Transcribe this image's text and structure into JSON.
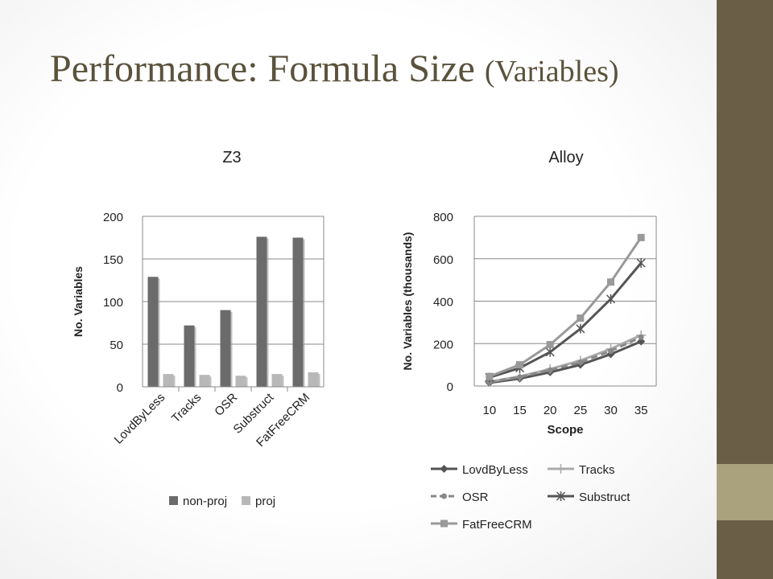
{
  "slide": {
    "title_main": "Performance: Formula Size",
    "title_sub": "(Variables)",
    "colors": {
      "band_dark": "#6b5e46",
      "band_light": "#a9a27d",
      "title": "#5a523b"
    }
  },
  "chart_data": [
    {
      "type": "bar",
      "title": "Z3",
      "ylabel": "No. Variables",
      "xlabel": "",
      "categories": [
        "LovdByLess",
        "Tracks",
        "OSR",
        "Substruct",
        "FatFreeCRM"
      ],
      "ylim": [
        0,
        200
      ],
      "yticks": [
        0,
        50,
        100,
        150,
        200
      ],
      "grid": true,
      "legend": "bottom",
      "series": [
        {
          "name": "non-proj",
          "values": [
            129,
            72,
            90,
            176,
            175
          ],
          "color": "#6b6b6b"
        },
        {
          "name": "proj",
          "values": [
            15,
            14,
            13,
            15,
            17
          ],
          "color": "#b8b8b8"
        }
      ]
    },
    {
      "type": "line",
      "title": "Alloy",
      "ylabel": "No. Variables (thousands)",
      "xlabel": "Scope",
      "x": [
        10,
        15,
        20,
        25,
        30,
        35
      ],
      "xticks": [
        10,
        15,
        20,
        25,
        30,
        35
      ],
      "ylim": [
        0,
        800
      ],
      "yticks": [
        0,
        200,
        400,
        600,
        800
      ],
      "grid": true,
      "legend": "bottom",
      "series": [
        {
          "name": "LovdByLess",
          "values": [
            15,
            35,
            65,
            100,
            150,
            210
          ],
          "color": "#555555",
          "marker": "diamond",
          "dash": false
        },
        {
          "name": "Tracks",
          "values": [
            20,
            45,
            80,
            120,
            175,
            240
          ],
          "color": "#aaaaaa",
          "marker": "plus",
          "dash": false
        },
        {
          "name": "OSR",
          "values": [
            18,
            42,
            75,
            112,
            165,
            230
          ],
          "color": "#888888",
          "marker": "circle",
          "dash": true
        },
        {
          "name": "Substruct",
          "values": [
            40,
            85,
            160,
            270,
            410,
            580
          ],
          "color": "#555555",
          "marker": "star",
          "dash": false
        },
        {
          "name": "FatFreeCRM",
          "values": [
            45,
            100,
            195,
            320,
            490,
            700
          ],
          "color": "#999999",
          "marker": "square",
          "dash": false
        }
      ]
    }
  ]
}
